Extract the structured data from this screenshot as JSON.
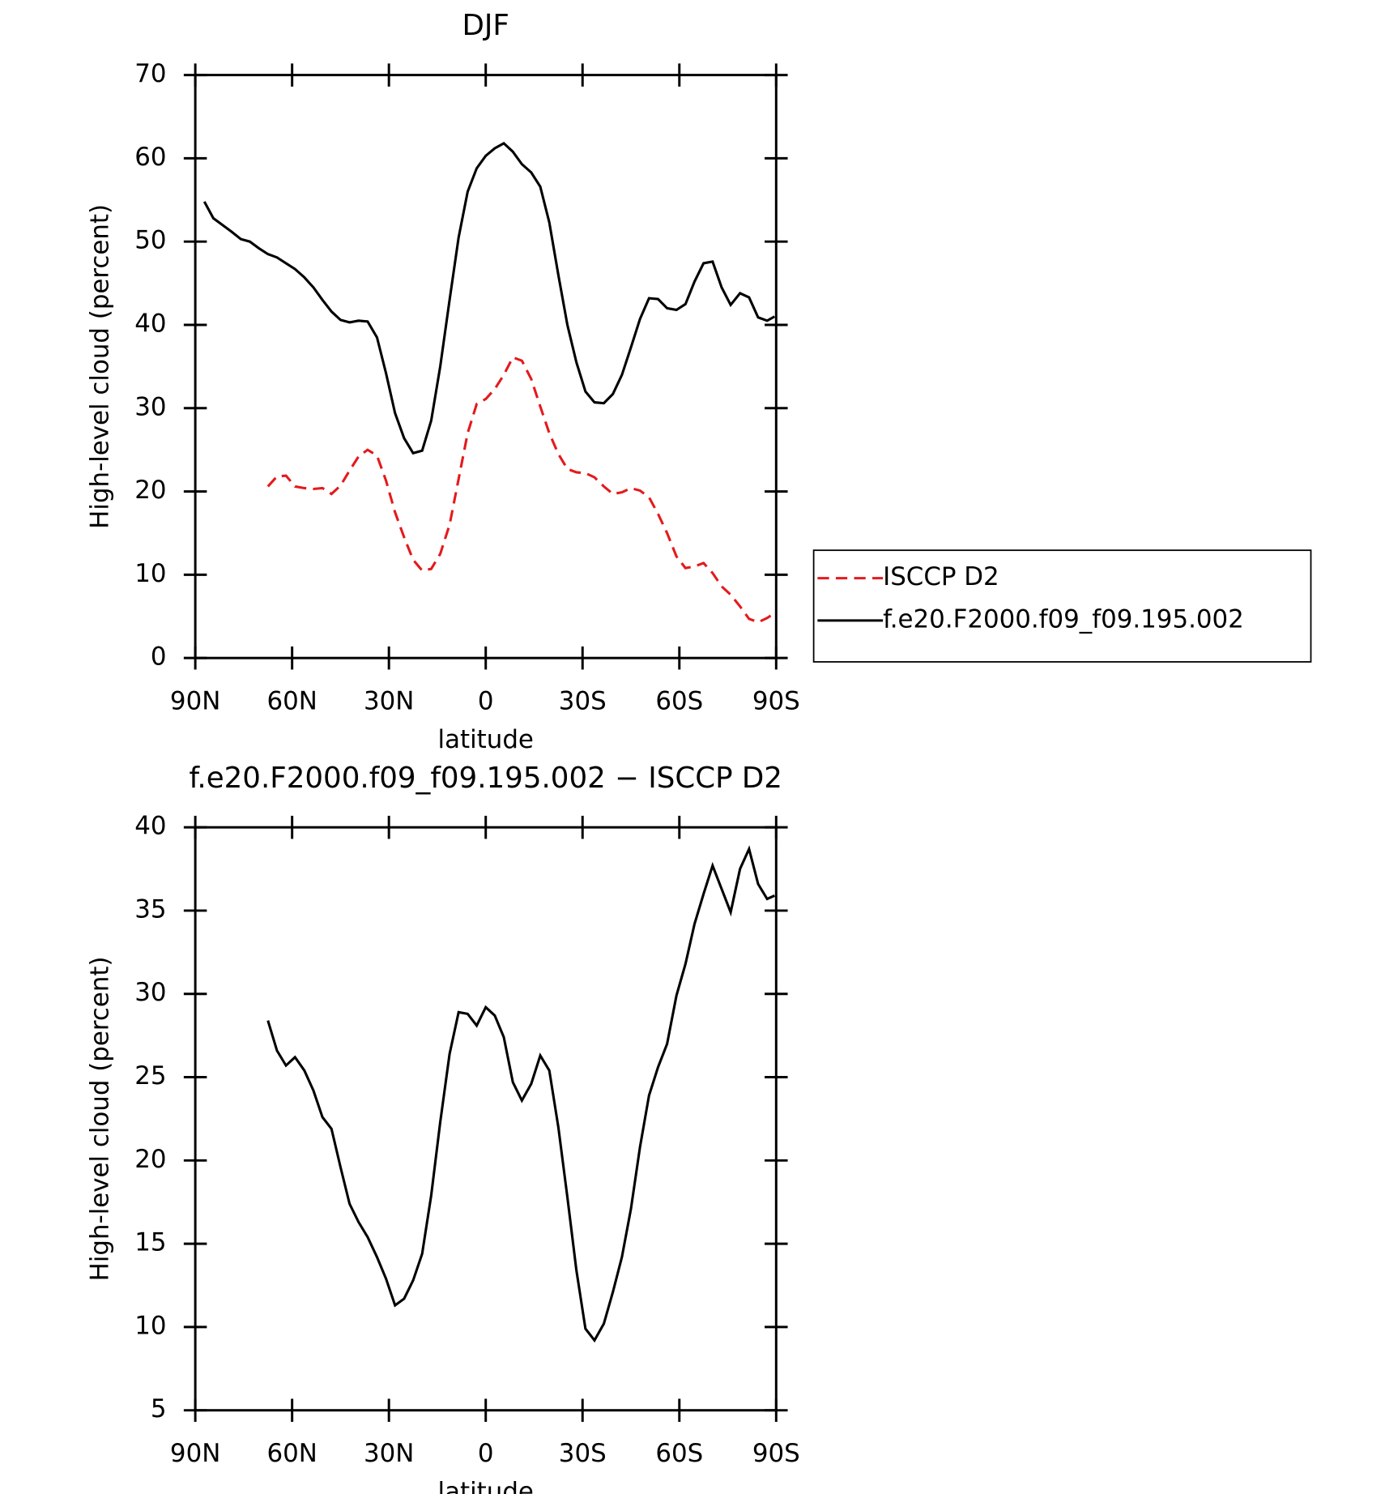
{
  "chart_data": [
    {
      "type": "line",
      "title": "DJF",
      "x_label": "latitude",
      "y_label": "High-level cloud (percent)",
      "x": [
        87.2,
        84.4,
        81.6,
        78.8,
        75.9,
        73.1,
        70.3,
        67.5,
        64.7,
        61.9,
        59.1,
        56.2,
        53.4,
        50.6,
        47.8,
        45,
        42.2,
        39.4,
        36.6,
        33.7,
        30.9,
        28.1,
        25.3,
        22.5,
        19.7,
        16.9,
        14.1,
        11.2,
        8.4,
        5.6,
        2.8,
        0,
        -2.8,
        -5.6,
        -8.4,
        -11.2,
        -14.1,
        -16.9,
        -19.7,
        -22.5,
        -25.3,
        -28.1,
        -30.9,
        -33.7,
        -36.6,
        -39.4,
        -42.2,
        -45,
        -47.8,
        -50.6,
        -53.4,
        -56.2,
        -59.1,
        -61.9,
        -64.7,
        -67.5,
        -70.3,
        -73.1,
        -75.9,
        -78.8,
        -81.6,
        -84.4,
        -87.2,
        -89.5
      ],
      "series": [
        {
          "name": "ISCCP D2",
          "color": "#e41a1c",
          "line_style": "dashed",
          "values": [
            null,
            null,
            null,
            null,
            null,
            null,
            null,
            20.6,
            21.8,
            21.9,
            20.6,
            20.4,
            20.3,
            20.4,
            19.7,
            20.7,
            22.5,
            24.2,
            25.0,
            24.3,
            21.3,
            17.5,
            14.5,
            11.8,
            10.5,
            10.7,
            12.5,
            16.0,
            21.5,
            27.0,
            30.5,
            31.1,
            32.3,
            34.0,
            36.1,
            35.7,
            33.5,
            30.2,
            27.0,
            24.5,
            22.7,
            22.3,
            22.2,
            21.7,
            20.6,
            19.7,
            19.9,
            20.4,
            20.1,
            19.3,
            17.3,
            15.0,
            12.2,
            10.8,
            11.0,
            11.4,
            10.2,
            8.6,
            7.6,
            6.2,
            4.7,
            4.3,
            4.8,
            5.4
          ]
        },
        {
          "name": "f.e20.F2000.f09_f09.195.002",
          "color": "#000000",
          "line_style": "solid",
          "values": [
            54.8,
            52.8,
            52.0,
            51.2,
            50.3,
            50.0,
            49.2,
            48.5,
            48.1,
            47.4,
            46.7,
            45.7,
            44.5,
            43.0,
            41.6,
            40.6,
            40.3,
            40.5,
            40.4,
            38.5,
            34.2,
            29.4,
            26.4,
            24.6,
            24.9,
            28.5,
            35.0,
            43.0,
            50.5,
            56.0,
            58.8,
            60.3,
            61.2,
            61.8,
            60.8,
            59.3,
            58.3,
            56.6,
            52.3,
            46.0,
            40.0,
            35.5,
            32.0,
            30.7,
            30.6,
            31.7,
            34.0,
            37.3,
            40.7,
            43.2,
            43.1,
            42.0,
            41.8,
            42.5,
            45.2,
            47.4,
            47.6,
            44.5,
            42.4,
            43.8,
            43.3,
            40.9,
            40.5,
            41.0
          ]
        }
      ],
      "xlim": [
        90,
        -90
      ],
      "xticks": [
        {
          "value": 90,
          "label": "90N"
        },
        {
          "value": 60,
          "label": "60N"
        },
        {
          "value": 30,
          "label": "30N"
        },
        0,
        {
          "value": -30,
          "label": "30S"
        },
        {
          "value": -60,
          "label": "60S"
        },
        {
          "value": -90,
          "label": "90S"
        }
      ],
      "ylim": [
        0,
        70
      ],
      "yticks": [
        0,
        10,
        20,
        30,
        40,
        50,
        60,
        70
      ],
      "legend": "right"
    },
    {
      "type": "line",
      "title": "f.e20.F2000.f09_f09.195.002 − ISCCP D2",
      "x_label": "latitude",
      "y_label": "High-level cloud (percent)",
      "x": [
        67.5,
        64.7,
        61.9,
        59.1,
        56.2,
        53.4,
        50.6,
        47.8,
        45,
        42.2,
        39.4,
        36.6,
        33.7,
        30.9,
        28.1,
        25.3,
        22.5,
        19.7,
        16.9,
        14.1,
        11.2,
        8.4,
        5.6,
        2.8,
        0,
        -2.8,
        -5.6,
        -8.4,
        -11.2,
        -14.1,
        -16.9,
        -19.7,
        -22.5,
        -25.3,
        -28.1,
        -30.9,
        -33.7,
        -36.6,
        -39.4,
        -42.2,
        -45,
        -47.8,
        -50.6,
        -53.4,
        -56.2,
        -59.1,
        -61.9,
        -64.7,
        -67.5,
        -70.3,
        -73.1,
        -75.9,
        -78.8,
        -81.6,
        -84.4,
        -87.2,
        -89.5
      ],
      "values": [
        28.4,
        26.6,
        25.7,
        26.2,
        25.4,
        24.2,
        22.6,
        21.9,
        19.6,
        17.4,
        16.3,
        15.4,
        14.2,
        12.9,
        11.3,
        11.7,
        12.8,
        14.4,
        17.9,
        22.3,
        26.4,
        28.9,
        28.8,
        28.1,
        29.2,
        28.7,
        27.4,
        24.7,
        23.6,
        24.6,
        26.3,
        25.4,
        22.0,
        17.8,
        13.4,
        9.9,
        9.2,
        10.2,
        12.1,
        14.2,
        17.1,
        20.8,
        23.9,
        25.6,
        27.0,
        29.9,
        31.8,
        34.2,
        36.0,
        37.7,
        36.3,
        34.9,
        37.5,
        38.7,
        36.6,
        35.7,
        35.9
      ],
      "color": "#000000",
      "xlim": [
        90,
        -90
      ],
      "xticks": [
        {
          "value": 90,
          "label": "90N"
        },
        {
          "value": 60,
          "label": "60N"
        },
        {
          "value": 30,
          "label": "30N"
        },
        0,
        {
          "value": -30,
          "label": "30S"
        },
        {
          "value": -60,
          "label": "60S"
        },
        {
          "value": -90,
          "label": "90S"
        }
      ],
      "ylim": [
        5,
        40
      ],
      "yticks": [
        5,
        10,
        15,
        20,
        25,
        30,
        35,
        40
      ]
    }
  ]
}
